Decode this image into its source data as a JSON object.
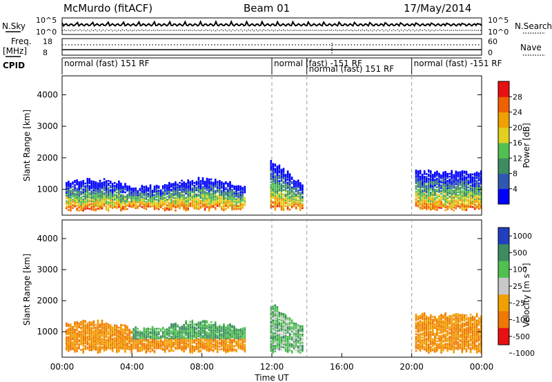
{
  "header": {
    "station": "McMurdo (fitACF)",
    "beam": "Beam 01",
    "date": "17/May/2014"
  },
  "status_panels": {
    "nsky_label": "N.Sky",
    "nsearch_label": "N.Search",
    "nsky_ticks": [
      "10^5",
      "10^0"
    ],
    "freq_label": "Freq.",
    "freq_unit": "[MHz]",
    "freq_ticks": [
      "18",
      "8"
    ],
    "nave_label": "Nave",
    "nave_ticks": [
      "60",
      "0"
    ],
    "cpid_label": "CPID",
    "cpid_segments": [
      {
        "label": "normal (fast) 151 RF",
        "start": 0,
        "end": 12
      },
      {
        "label": "normal (fast) -151 RF",
        "start": 12,
        "end": 14
      },
      {
        "label": "normal (fast) 151 RF",
        "start": 14,
        "end": 20
      },
      {
        "label": "normal (fast) -151 RF",
        "start": 20,
        "end": 24
      }
    ]
  },
  "chart_data": [
    {
      "type": "heatmap",
      "quantity": "power",
      "ylabel": "Slant Range [km]",
      "ylim": [
        180,
        4600
      ],
      "yticks": [
        "1000",
        "2000",
        "3000",
        "4000"
      ],
      "xlim": [
        0,
        24
      ],
      "colorbar_label": "Power [dB]",
      "colorbar_ticks": [
        "4",
        "8",
        "12",
        "16",
        "20",
        "24",
        "28"
      ],
      "colorbar_colors": [
        "#0000ff",
        "#3058b0",
        "#3c8c60",
        "#50c050",
        "#e0d020",
        "#f0a000",
        "#f06000",
        "#e81010"
      ],
      "colorbar_range": [
        0,
        30
      ]
    },
    {
      "type": "heatmap",
      "quantity": "velocity",
      "ylabel": "Slant Range [km]",
      "ylim": [
        180,
        4600
      ],
      "yticks": [
        "1000",
        "2000",
        "3000",
        "4000"
      ],
      "xlim": [
        0,
        24
      ],
      "colorbar_label": "Velocity [m s⁻¹]",
      "colorbar_ticks": [
        "1000",
        "500",
        "100",
        "25",
        "-25",
        "-100",
        "-500",
        "-1000"
      ],
      "colorbar_colors": [
        "#2040c0",
        "#3c8c60",
        "#50c050",
        "#c8c8c8",
        "#f0a000",
        "#f07800",
        "#e81010"
      ]
    }
  ],
  "x_axis": {
    "label": "Time UT",
    "ticks": [
      "00:00",
      "04:00",
      "08:00",
      "12:00",
      "16:00",
      "20:00",
      "00:00"
    ]
  }
}
